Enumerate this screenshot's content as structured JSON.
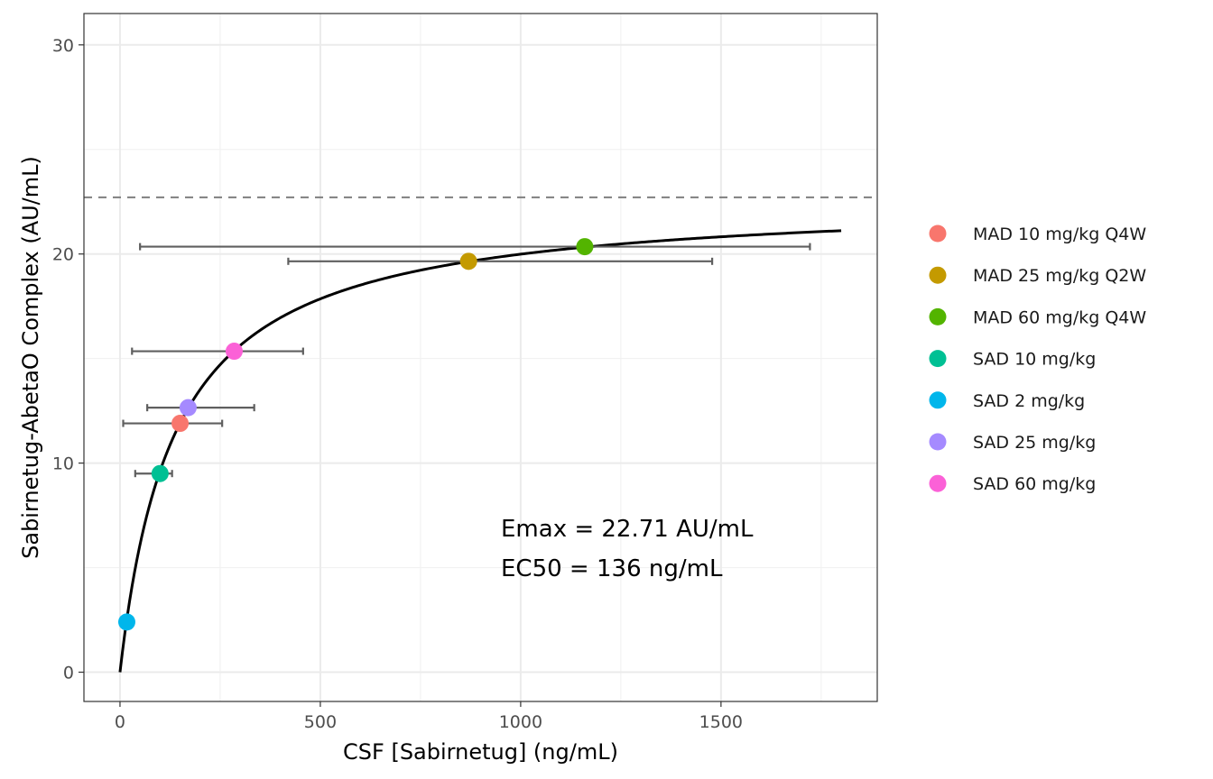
{
  "chart_data": {
    "type": "scatter",
    "xlabel": "CSF [Sabirnetug] (ng/mL)",
    "ylabel": "Sabirnetug-AbetaO Complex (AU/mL)",
    "xlim": [
      -90,
      1890
    ],
    "ylim": [
      -1.4,
      31.5
    ],
    "x_ticks": [
      0,
      500,
      1000,
      1500
    ],
    "y_ticks": [
      0,
      10,
      20,
      30
    ],
    "grid": true,
    "legend_position": "right",
    "series": [
      {
        "name": "MAD 10 mg/kg Q4W",
        "color": "#F8766D",
        "x": 150,
        "y": 11.9,
        "xerr": [
          8,
          255
        ]
      },
      {
        "name": "MAD 25 mg/kg Q2W",
        "color": "#C49A00",
        "x": 870,
        "y": 19.65,
        "xerr": [
          420,
          1478
        ]
      },
      {
        "name": "MAD 60 mg/kg Q4W",
        "color": "#53B400",
        "x": 1160,
        "y": 20.35,
        "xerr": [
          50,
          1722
        ]
      },
      {
        "name": "SAD 10 mg/kg",
        "color": "#00C094",
        "x": 100,
        "y": 9.5,
        "xerr": [
          38,
          130
        ]
      },
      {
        "name": "SAD 2 mg/kg",
        "color": "#00B6EB",
        "x": 17,
        "y": 2.4,
        "xerr": null
      },
      {
        "name": "SAD 25 mg/kg",
        "color": "#A58AFF",
        "x": 170,
        "y": 12.65,
        "xerr": [
          68,
          335
        ]
      },
      {
        "name": "SAD 60 mg/kg",
        "color": "#FB61D7",
        "x": 285,
        "y": 15.35,
        "xerr": [
          30,
          457
        ]
      }
    ],
    "fit": {
      "model": "emax",
      "emax": 22.71,
      "ec50": 136,
      "x_range": [
        0,
        1800
      ]
    },
    "reference_line_y": 22.71,
    "annotations": [
      "Emax = 22.71 AU/mL",
      "EC50 = 136 ng/mL"
    ]
  }
}
